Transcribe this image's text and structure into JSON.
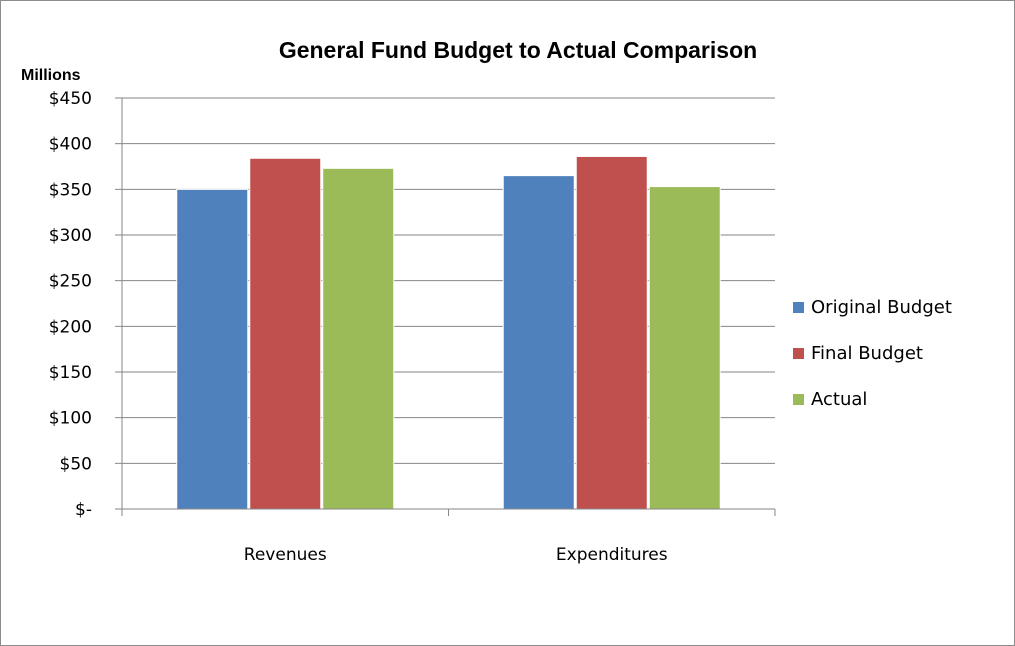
{
  "chart_data": {
    "type": "bar",
    "title": "General Fund Budget to Actual Comparison",
    "units_label": "Millions",
    "categories": [
      "Revenues",
      "Expenditures"
    ],
    "series": [
      {
        "name": "Original Budget",
        "color": "#4f81bd",
        "values": [
          350,
          365
        ]
      },
      {
        "name": "Final Budget",
        "color": "#c0504d",
        "values": [
          384,
          386
        ]
      },
      {
        "name": "Actual",
        "color": "#9bbb59",
        "values": [
          373,
          353
        ]
      }
    ],
    "ylim": [
      0,
      450
    ],
    "y_ticks": [
      {
        "value": 450,
        "label": "$450"
      },
      {
        "value": 400,
        "label": "$400"
      },
      {
        "value": 350,
        "label": "$350"
      },
      {
        "value": 300,
        "label": "$300"
      },
      {
        "value": 250,
        "label": "$250"
      },
      {
        "value": 200,
        "label": "$200"
      },
      {
        "value": 150,
        "label": "$150"
      },
      {
        "value": 100,
        "label": "$100"
      },
      {
        "value": 50,
        "label": "$50"
      },
      {
        "value": 0,
        "label": "$-"
      }
    ],
    "grid": true,
    "legend_position": "right"
  }
}
